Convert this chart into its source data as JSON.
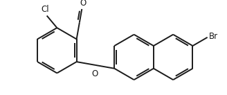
{
  "background_color": "#ffffff",
  "line_color": "#1a1a1a",
  "line_width": 1.4,
  "label_color": "#1a1a1a",
  "font_size": 8.5,
  "Cl_label": "Cl",
  "O_aldehyde_label": "O",
  "O_ether_label": "O",
  "Br_label": "Br",
  "figsize": [
    3.28,
    1.37
  ],
  "dpi": 100,
  "xlim": [
    -0.5,
    9.5
  ],
  "ylim": [
    0.0,
    3.8
  ]
}
